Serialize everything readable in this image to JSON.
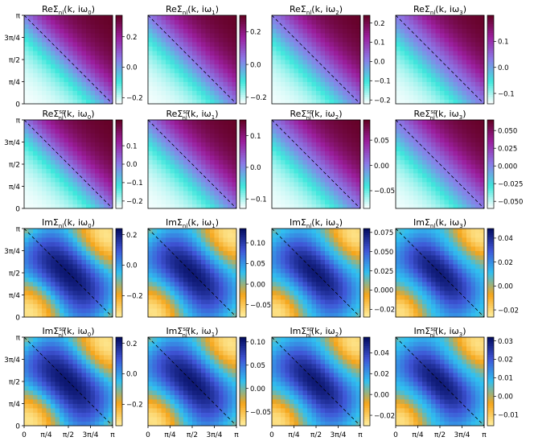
{
  "figure": {
    "x_tick_labels": [
      "0",
      "π/4",
      "π/2",
      "3π/4",
      "π"
    ],
    "y_tick_labels": [
      "0",
      "π/4",
      "π/2",
      "3π/4",
      "π"
    ],
    "colormaps": {
      "real": [
        "#ffffff",
        "#3fe7dc",
        "#8a7be8",
        "#9b1f9e",
        "#620020"
      ],
      "imag": [
        "#fff0a0",
        "#f5a51a",
        "#30c0f0",
        "#3f55d6",
        "#020a5c"
      ]
    }
  },
  "chart_data": [
    {
      "type": "heatmap",
      "title_prefix": "ReΣ",
      "title_sup": "",
      "title_sub": "nl",
      "title_args": "(k, iω",
      "title_freq": "0",
      "cmap": "real",
      "field": "real",
      "strength": 1.0,
      "colorbar_ticks": [
        0.2,
        0.0,
        -0.2
      ],
      "colorbar_ticklabels": [
        "0.2",
        "0.0",
        "−0.2"
      ],
      "colorbar_range": [
        -0.24,
        0.34
      ],
      "diagonal": true
    },
    {
      "type": "heatmap",
      "title_prefix": "ReΣ",
      "title_sup": "",
      "title_sub": "nl",
      "title_args": "(k, iω",
      "title_freq": "1",
      "cmap": "real",
      "field": "real",
      "strength": 0.75,
      "colorbar_ticks": [
        0.2,
        0.0,
        -0.2
      ],
      "colorbar_ticklabels": [
        "0.2",
        "0.0",
        "−0.2"
      ],
      "colorbar_range": [
        -0.24,
        0.3
      ],
      "diagonal": true
    },
    {
      "type": "heatmap",
      "title_prefix": "ReΣ",
      "title_sup": "",
      "title_sub": "nl",
      "title_args": "(k, iω",
      "title_freq": "2",
      "cmap": "real",
      "field": "real",
      "strength": 0.55,
      "colorbar_ticks": [
        0.2,
        0.1,
        0.0,
        -0.1,
        -0.2
      ],
      "colorbar_ticklabels": [
        "0.2",
        "0.1",
        "0.0",
        "−0.1",
        "−0.2"
      ],
      "colorbar_range": [
        -0.22,
        0.24
      ],
      "diagonal": true
    },
    {
      "type": "heatmap",
      "title_prefix": "ReΣ",
      "title_sup": "",
      "title_sub": "nl",
      "title_args": "(k, iω",
      "title_freq": "3",
      "cmap": "real",
      "field": "real",
      "strength": 0.4,
      "colorbar_ticks": [
        0.1,
        0.0,
        -0.1
      ],
      "colorbar_ticklabels": [
        "0.1",
        "0.0",
        "−0.1"
      ],
      "colorbar_range": [
        -0.14,
        0.2
      ],
      "diagonal": true
    },
    {
      "type": "heatmap",
      "title_prefix": "ReΣ",
      "title_sup": "sp",
      "title_sub": "nl",
      "title_args": "(k, iω",
      "title_freq": "0",
      "cmap": "real",
      "field": "real",
      "strength": 1.0,
      "colorbar_ticks": [
        0.1,
        0.0,
        -0.1,
        -0.2
      ],
      "colorbar_ticklabels": [
        "0.1",
        "0.0",
        "−0.1",
        "−0.2"
      ],
      "colorbar_range": [
        -0.24,
        0.24
      ],
      "diagonal": true
    },
    {
      "type": "heatmap",
      "title_prefix": "ReΣ",
      "title_sup": "sp",
      "title_sub": "nl",
      "title_args": "(k, iω",
      "title_freq": "1",
      "cmap": "real",
      "field": "real",
      "strength": 0.75,
      "colorbar_ticks": [
        0.1,
        0.0,
        -0.1
      ],
      "colorbar_ticklabels": [
        "0.1",
        "0.0",
        "−0.1"
      ],
      "colorbar_range": [
        -0.13,
        0.15
      ],
      "diagonal": true
    },
    {
      "type": "heatmap",
      "title_prefix": "ReΣ",
      "title_sup": "sp",
      "title_sub": "nl",
      "title_args": "(k, iω",
      "title_freq": "2",
      "cmap": "real",
      "field": "real",
      "strength": 0.55,
      "colorbar_ticks": [
        0.05,
        0.0,
        -0.05
      ],
      "colorbar_ticklabels": [
        "0.05",
        "0.00",
        "−0.05"
      ],
      "colorbar_range": [
        -0.085,
        0.09
      ],
      "diagonal": true
    },
    {
      "type": "heatmap",
      "title_prefix": "ReΣ",
      "title_sup": "sp",
      "title_sub": "nl",
      "title_args": "(k, iω",
      "title_freq": "3",
      "cmap": "real",
      "field": "real",
      "strength": 0.4,
      "colorbar_ticks": [
        0.05,
        0.025,
        0.0,
        -0.025,
        -0.05
      ],
      "colorbar_ticklabels": [
        "0.050",
        "0.025",
        "0.000",
        "−0.025",
        "−0.050"
      ],
      "colorbar_range": [
        -0.06,
        0.065
      ],
      "diagonal": true
    },
    {
      "type": "heatmap",
      "title_prefix": "ImΣ",
      "title_sup": "",
      "title_sub": "nl",
      "title_args": "(k, iω",
      "title_freq": "0",
      "cmap": "imag",
      "field": "imag",
      "strength": 1.0,
      "colorbar_ticks": [
        0.2,
        0.0,
        -0.2
      ],
      "colorbar_ticklabels": [
        "0.2",
        "0.0",
        "−0.2"
      ],
      "colorbar_range": [
        -0.34,
        0.24
      ],
      "diagonal": true
    },
    {
      "type": "heatmap",
      "title_prefix": "ImΣ",
      "title_sup": "",
      "title_sub": "nl",
      "title_args": "(k, iω",
      "title_freq": "1",
      "cmap": "imag",
      "field": "imag",
      "strength": 0.75,
      "colorbar_ticks": [
        0.1,
        0.05,
        0.0,
        -0.05
      ],
      "colorbar_ticklabels": [
        "0.10",
        "0.05",
        "0.00",
        "−0.05"
      ],
      "colorbar_range": [
        -0.08,
        0.135
      ],
      "diagonal": true
    },
    {
      "type": "heatmap",
      "title_prefix": "ImΣ",
      "title_sup": "",
      "title_sub": "nl",
      "title_args": "(k, iω",
      "title_freq": "2",
      "cmap": "imag",
      "field": "imag",
      "strength": 0.55,
      "colorbar_ticks": [
        0.075,
        0.05,
        0.025,
        0.0,
        -0.025
      ],
      "colorbar_ticklabels": [
        "0.075",
        "0.050",
        "0.025",
        "0.000",
        "−0.025"
      ],
      "colorbar_range": [
        -0.035,
        0.08
      ],
      "diagonal": true
    },
    {
      "type": "heatmap",
      "title_prefix": "ImΣ",
      "title_sup": "",
      "title_sub": "nl",
      "title_args": "(k, iω",
      "title_freq": "3",
      "cmap": "imag",
      "field": "imag",
      "strength": 0.4,
      "colorbar_ticks": [
        0.04,
        0.02,
        0.0,
        -0.02
      ],
      "colorbar_ticklabels": [
        "0.04",
        "0.02",
        "0.00",
        "−0.02"
      ],
      "colorbar_range": [
        -0.026,
        0.048
      ],
      "diagonal": true
    },
    {
      "type": "heatmap",
      "title_prefix": "ImΣ",
      "title_sup": "sp",
      "title_sub": "nl",
      "title_args": "(k, iω",
      "title_freq": "0",
      "cmap": "imag",
      "field": "imag",
      "strength": 1.0,
      "colorbar_ticks": [
        0.2,
        0.0,
        -0.2
      ],
      "colorbar_ticklabels": [
        "0.2",
        "0.0",
        "−0.2"
      ],
      "colorbar_range": [
        -0.34,
        0.24
      ],
      "diagonal": true
    },
    {
      "type": "heatmap",
      "title_prefix": "ImΣ",
      "title_sup": "sp",
      "title_sub": "nl",
      "title_args": "(k, iω",
      "title_freq": "1",
      "cmap": "imag",
      "field": "imag",
      "strength": 0.75,
      "colorbar_ticks": [
        0.1,
        0.05,
        0.0,
        -0.05
      ],
      "colorbar_ticklabels": [
        "0.10",
        "0.05",
        "0.00",
        "−0.05"
      ],
      "colorbar_range": [
        -0.08,
        0.11
      ],
      "diagonal": true
    },
    {
      "type": "heatmap",
      "title_prefix": "ImΣ",
      "title_sup": "sp",
      "title_sub": "nl",
      "title_args": "(k, iω",
      "title_freq": "2",
      "cmap": "imag",
      "field": "imag",
      "strength": 0.55,
      "colorbar_ticks": [
        0.04,
        0.02,
        0.0,
        -0.02
      ],
      "colorbar_ticklabels": [
        "0.04",
        "0.02",
        "0.00",
        "−0.02"
      ],
      "colorbar_range": [
        -0.03,
        0.055
      ],
      "diagonal": true
    },
    {
      "type": "heatmap",
      "title_prefix": "ImΣ",
      "title_sup": "sp",
      "title_sub": "nl",
      "title_args": "(k, iω",
      "title_freq": "3",
      "cmap": "imag",
      "field": "imag",
      "strength": 0.4,
      "colorbar_ticks": [
        0.03,
        0.02,
        0.01,
        0.0,
        -0.01
      ],
      "colorbar_ticklabels": [
        "0.03",
        "0.02",
        "0.01",
        "0.00",
        "−0.01"
      ],
      "colorbar_range": [
        -0.016,
        0.032
      ],
      "diagonal": true
    }
  ]
}
